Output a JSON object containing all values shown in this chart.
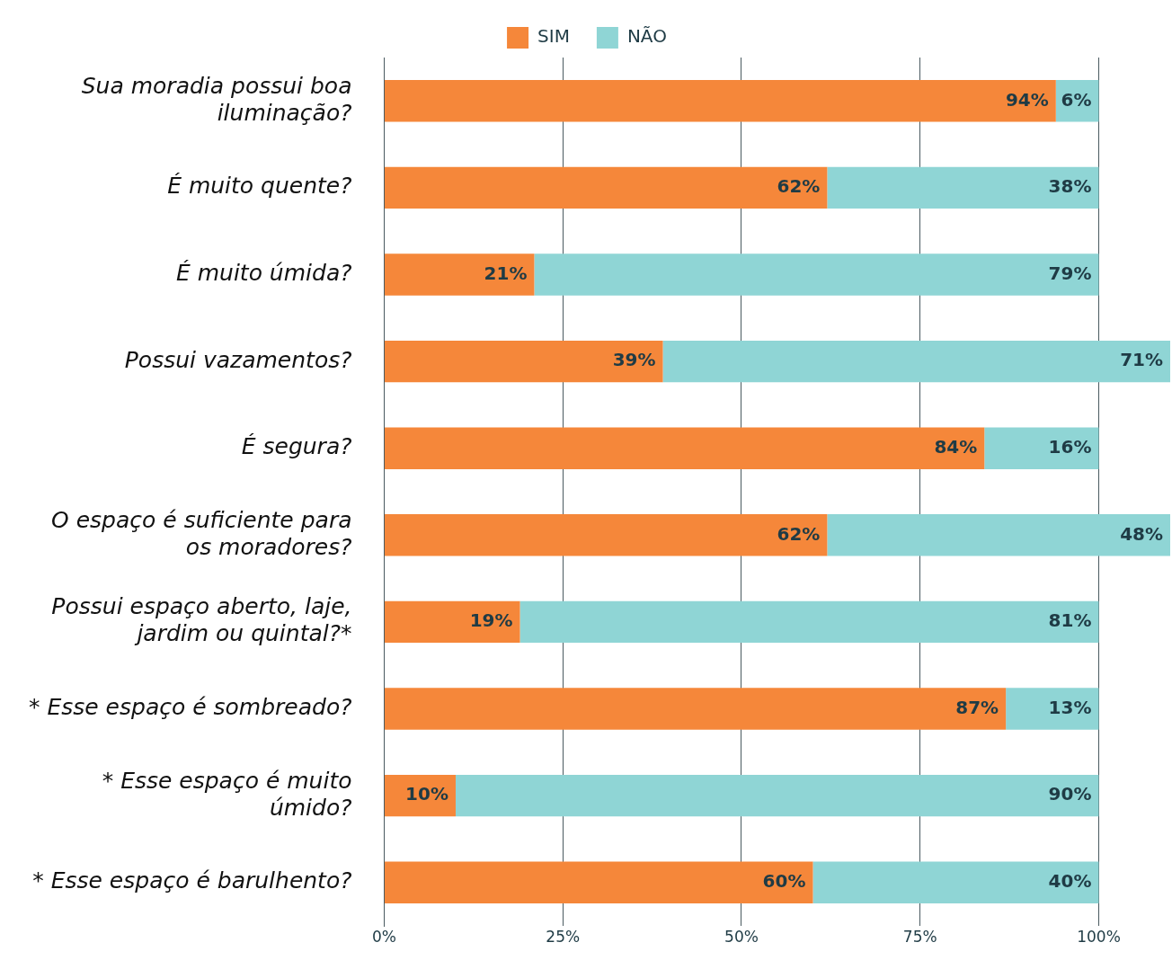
{
  "chart_data": {
    "type": "bar",
    "orientation": "horizontal",
    "stacked": true,
    "categories": [
      "Sua moradia possui boa iluminação?",
      "É muito quente?",
      "É muito úmida?",
      "Possui vazamentos?",
      "É segura?",
      "O espaço é suficiente para os moradores?",
      "Possui espaço aberto, laje, jardim ou quintal?*",
      "* Esse espaço é sombreado?",
      "* Esse espaço é muito úmido?",
      "* Esse espaço é barulhento?"
    ],
    "series": [
      {
        "name": "SIM",
        "color": "#f5873a",
        "values": [
          94,
          62,
          21,
          39,
          84,
          62,
          19,
          87,
          10,
          60
        ],
        "value_labels": [
          "94%",
          "62%",
          "21%",
          "39%",
          "84%",
          "62%",
          "19%",
          "87%",
          "10%",
          "60%"
        ]
      },
      {
        "name": "NÃO",
        "color": "#8fd5d5",
        "values": [
          6,
          38,
          79,
          71,
          16,
          48,
          81,
          13,
          90,
          40
        ],
        "value_labels": [
          "6%",
          "38%",
          "79%",
          "71%",
          "16%",
          "48%",
          "81%",
          "13%",
          "90%",
          "40%"
        ]
      }
    ],
    "xlim": [
      0,
      110
    ],
    "xticks": [
      {
        "value": 0,
        "label": "0%"
      },
      {
        "value": 25,
        "label": "25%"
      },
      {
        "value": 50,
        "label": "50%"
      },
      {
        "value": 75,
        "label": "75%"
      },
      {
        "value": 100,
        "label": "100%"
      }
    ],
    "grid": "x",
    "legend": "top left"
  }
}
